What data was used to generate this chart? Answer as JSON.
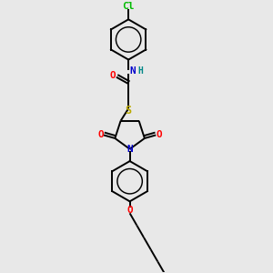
{
  "bg_color": "#e8e8e8",
  "atom_colors": {
    "C": "#000000",
    "N": "#0000cc",
    "O": "#ff0000",
    "S": "#bbaa00",
    "Cl": "#00bb00",
    "H": "#008888"
  },
  "line_color": "#000000",
  "line_width": 1.4
}
